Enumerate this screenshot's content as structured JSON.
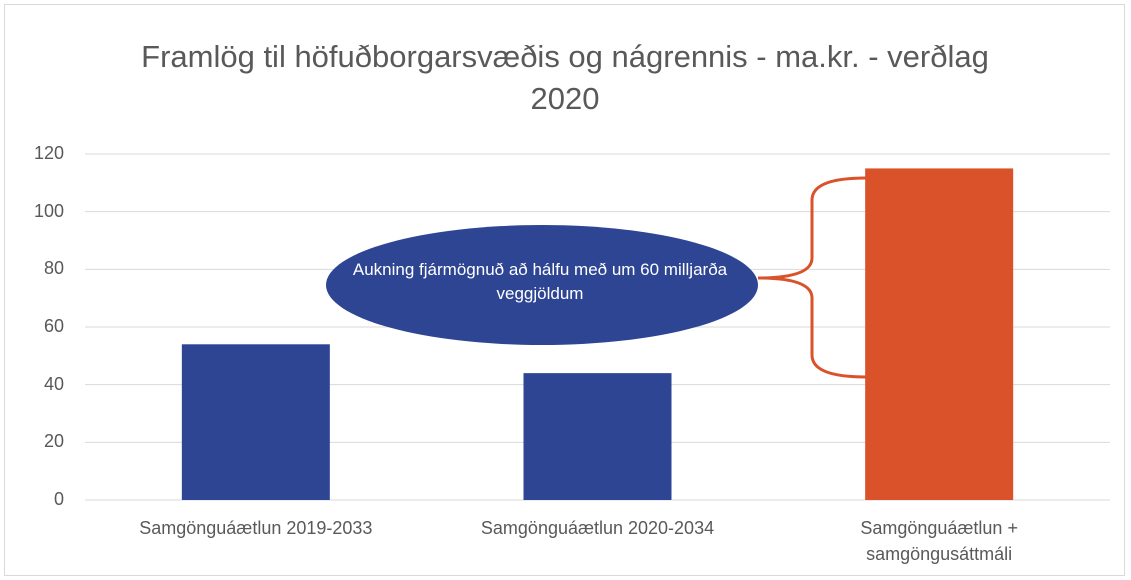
{
  "chart_data": {
    "type": "bar",
    "title": "Framlög til höfuðborgarsvæðis og nágrennis - ma.kr. - verðlag 2020",
    "categories": [
      "Samgönguáætlun 2019-2033",
      "Samgönguáætlun 2020-2034",
      "Samgönguáætlun + samgöngusáttmáli"
    ],
    "values": [
      54,
      44,
      115
    ],
    "colors": [
      "#2e4594",
      "#2e4594",
      "#d9522a"
    ],
    "ylim": [
      0,
      120
    ],
    "yticks": [
      0,
      20,
      40,
      60,
      80,
      100,
      120
    ],
    "grid": true,
    "annotation": "Aukning fjármögnuð að hálfu með um 60 milljarða veggjöldum"
  }
}
